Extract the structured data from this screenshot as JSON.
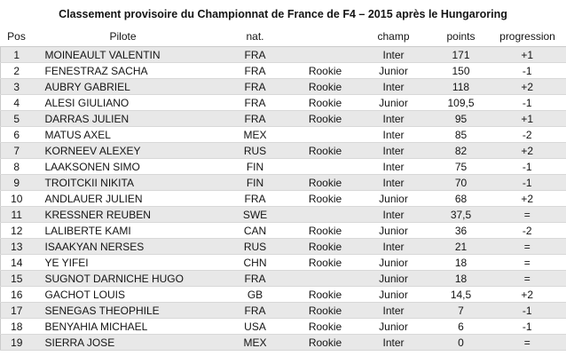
{
  "title": "Classement provisoire du Championnat de France de F4 – 2015 après le Hungaroring",
  "table": {
    "headers": {
      "pos": "Pos",
      "pilote": "Pilote",
      "nat": "nat.",
      "rookie": "",
      "champ": "champ",
      "points": "points",
      "progression": "progression"
    },
    "rows": [
      [
        "1",
        "MOINEAULT VALENTIN",
        "FRA",
        "",
        "Inter",
        "171",
        "+1"
      ],
      [
        "2",
        "FENESTRAZ SACHA",
        "FRA",
        "Rookie",
        "Junior",
        "150",
        "-1"
      ],
      [
        "3",
        "AUBRY GABRIEL",
        "FRA",
        "Rookie",
        "Inter",
        "118",
        "+2"
      ],
      [
        "4",
        "ALESI GIULIANO",
        "FRA",
        "Rookie",
        "Junior",
        "109,5",
        "-1"
      ],
      [
        "5",
        "DARRAS JULIEN",
        "FRA",
        "Rookie",
        "Inter",
        "95",
        "+1"
      ],
      [
        "6",
        "MATUS AXEL",
        "MEX",
        "",
        "Inter",
        "85",
        "-2"
      ],
      [
        "7",
        "KORNEEV ALEXEY",
        "RUS",
        "Rookie",
        "Inter",
        "82",
        "+2"
      ],
      [
        "8",
        "LAAKSONEN SIMO",
        "FIN",
        "",
        "Inter",
        "75",
        "-1"
      ],
      [
        "9",
        "TROITCKII NIKITA",
        "FIN",
        "Rookie",
        "Inter",
        "70",
        "-1"
      ],
      [
        "10",
        "ANDLAUER JULIEN",
        "FRA",
        "Rookie",
        "Junior",
        "68",
        "+2"
      ],
      [
        "11",
        "KRESSNER REUBEN",
        "SWE",
        "",
        "Inter",
        "37,5",
        "="
      ],
      [
        "12",
        "LALIBERTE KAMI",
        "CAN",
        "Rookie",
        "Junior",
        "36",
        "-2"
      ],
      [
        "13",
        "ISAAKYAN NERSES",
        "RUS",
        "Rookie",
        "Inter",
        "21",
        "="
      ],
      [
        "14",
        "YE YIFEI",
        "CHN",
        "Rookie",
        "Junior",
        "18",
        "="
      ],
      [
        "15",
        "SUGNOT DARNICHE HUGO",
        "FRA",
        "",
        "Junior",
        "18",
        "="
      ],
      [
        "16",
        "GACHOT LOUIS",
        "GB",
        "Rookie",
        "Junior",
        "14,5",
        "+2"
      ],
      [
        "17",
        "SENEGAS THEOPHILE",
        "FRA",
        "Rookie",
        "Inter",
        "7",
        "-1"
      ],
      [
        "18",
        "BENYAHIA MICHAEL",
        "USA",
        "Rookie",
        "Junior",
        "6",
        "-1"
      ],
      [
        "19",
        "SIERRA JOSE",
        "MEX",
        "Rookie",
        "Inter",
        "0",
        "="
      ]
    ]
  },
  "colors": {
    "stripe": "#e8e8e8",
    "row_separator": "#d8d8d8",
    "outer_border": "#cbcbcb",
    "text": "#141414",
    "background": "#ffffff"
  }
}
